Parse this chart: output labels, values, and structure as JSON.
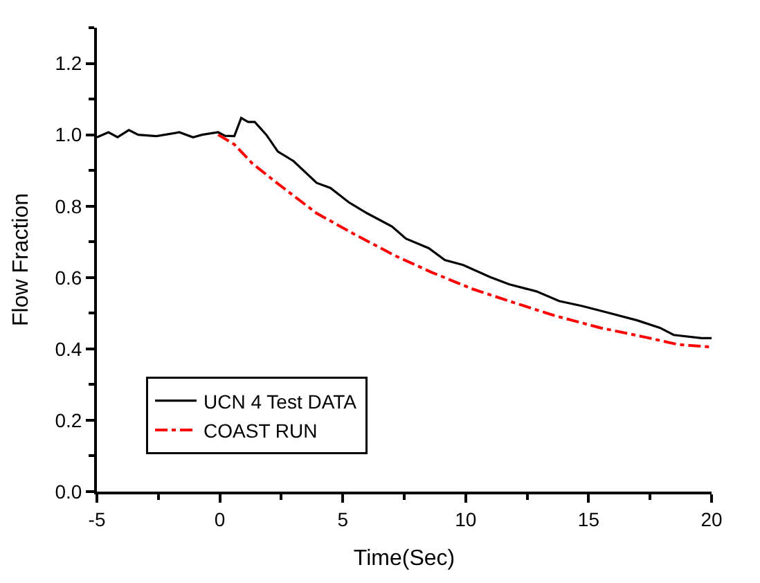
{
  "chart_data": {
    "type": "line",
    "xlabel": "Time(Sec)",
    "ylabel": "Flow Fraction",
    "xlim": [
      -5,
      20
    ],
    "xticks": [
      -5,
      0,
      5,
      10,
      15,
      20
    ],
    "ylim": [
      0,
      1.3
    ],
    "yticks": [
      {
        "value": 0,
        "label": "0.0"
      },
      0.2,
      0.4,
      0.6,
      0.8,
      {
        "value": 1,
        "label": "1.0"
      },
      1.2
    ],
    "legend": "bottom left",
    "marker": "none",
    "series": [
      {
        "name": "UCN 4 Test DATA",
        "color": "#000000",
        "line_style": "solid",
        "x": [
          -5,
          -4.53,
          -4.16,
          -3.7,
          -3.32,
          -2.58,
          -1.65,
          -1.09,
          -0.72,
          -0.07,
          0.21,
          0.59,
          0.87,
          1.15,
          1.42,
          1.89,
          2.36,
          3.0,
          3.94,
          4.5,
          5.24,
          5.99,
          7.0,
          7.57,
          8.5,
          9.15,
          9.9,
          11.0,
          11.76,
          12.88,
          13.8,
          14.74,
          15.86,
          16.97,
          17.9,
          18.46,
          19.6,
          20
        ],
        "values": [
          0.993,
          1.007,
          0.993,
          1.013,
          1.0,
          0.996,
          1.007,
          0.993,
          1.0,
          1.007,
          0.997,
          0.996,
          1.047,
          1.036,
          1.036,
          1.0,
          0.953,
          0.926,
          0.865,
          0.851,
          0.811,
          0.78,
          0.743,
          0.709,
          0.682,
          0.649,
          0.635,
          0.601,
          0.581,
          0.561,
          0.534,
          0.52,
          0.5,
          0.48,
          0.459,
          0.439,
          0.43,
          0.43
        ]
      },
      {
        "name": "COAST RUN",
        "color": "#ff0000",
        "line_style": "dashed",
        "x": [
          -0.07,
          0.59,
          1.33,
          2.45,
          3.94,
          5.43,
          7.1,
          8.6,
          10.27,
          11.76,
          13.62,
          15.48,
          17.35,
          18.65,
          20
        ],
        "values": [
          1.0,
          0.973,
          0.919,
          0.858,
          0.78,
          0.723,
          0.662,
          0.615,
          0.568,
          0.534,
          0.493,
          0.459,
          0.432,
          0.412,
          0.405
        ]
      }
    ]
  }
}
